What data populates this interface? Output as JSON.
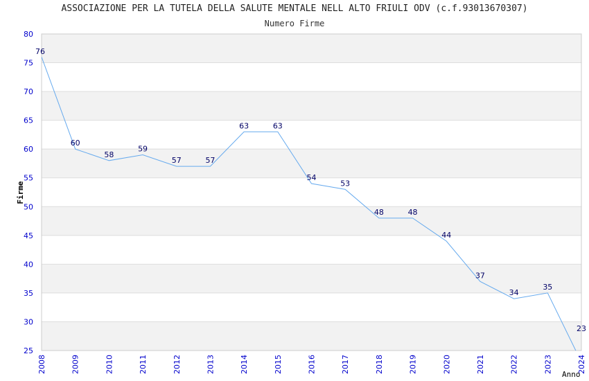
{
  "chart_data": {
    "type": "line",
    "title": "ASSOCIAZIONE PER LA TUTELA DELLA SALUTE MENTALE NELL ALTO FRIULI ODV (c.f.93013670307)",
    "subtitle": "Numero Firme",
    "xlabel": "Anno",
    "ylabel": "Firme",
    "ylim": [
      25,
      80
    ],
    "yticks": [
      25,
      30,
      35,
      40,
      45,
      50,
      55,
      60,
      65,
      70,
      75,
      80
    ],
    "grid": true,
    "x": [
      "2008",
      "2009",
      "2010",
      "2011",
      "2012",
      "2013",
      "2014",
      "2015",
      "2016",
      "2017",
      "2018",
      "2019",
      "2020",
      "2021",
      "2022",
      "2023",
      "2024"
    ],
    "series": [
      {
        "values": [
          76,
          60,
          58,
          59,
          57,
          57,
          63,
          63,
          54,
          53,
          48,
          48,
          44,
          37,
          34,
          35,
          23
        ],
        "color": "#66aaee"
      }
    ],
    "colors": {
      "tick_text": "#0000cc",
      "data_label": "#000066",
      "band": "#f2f2f2",
      "grid": "#dddddd"
    }
  }
}
